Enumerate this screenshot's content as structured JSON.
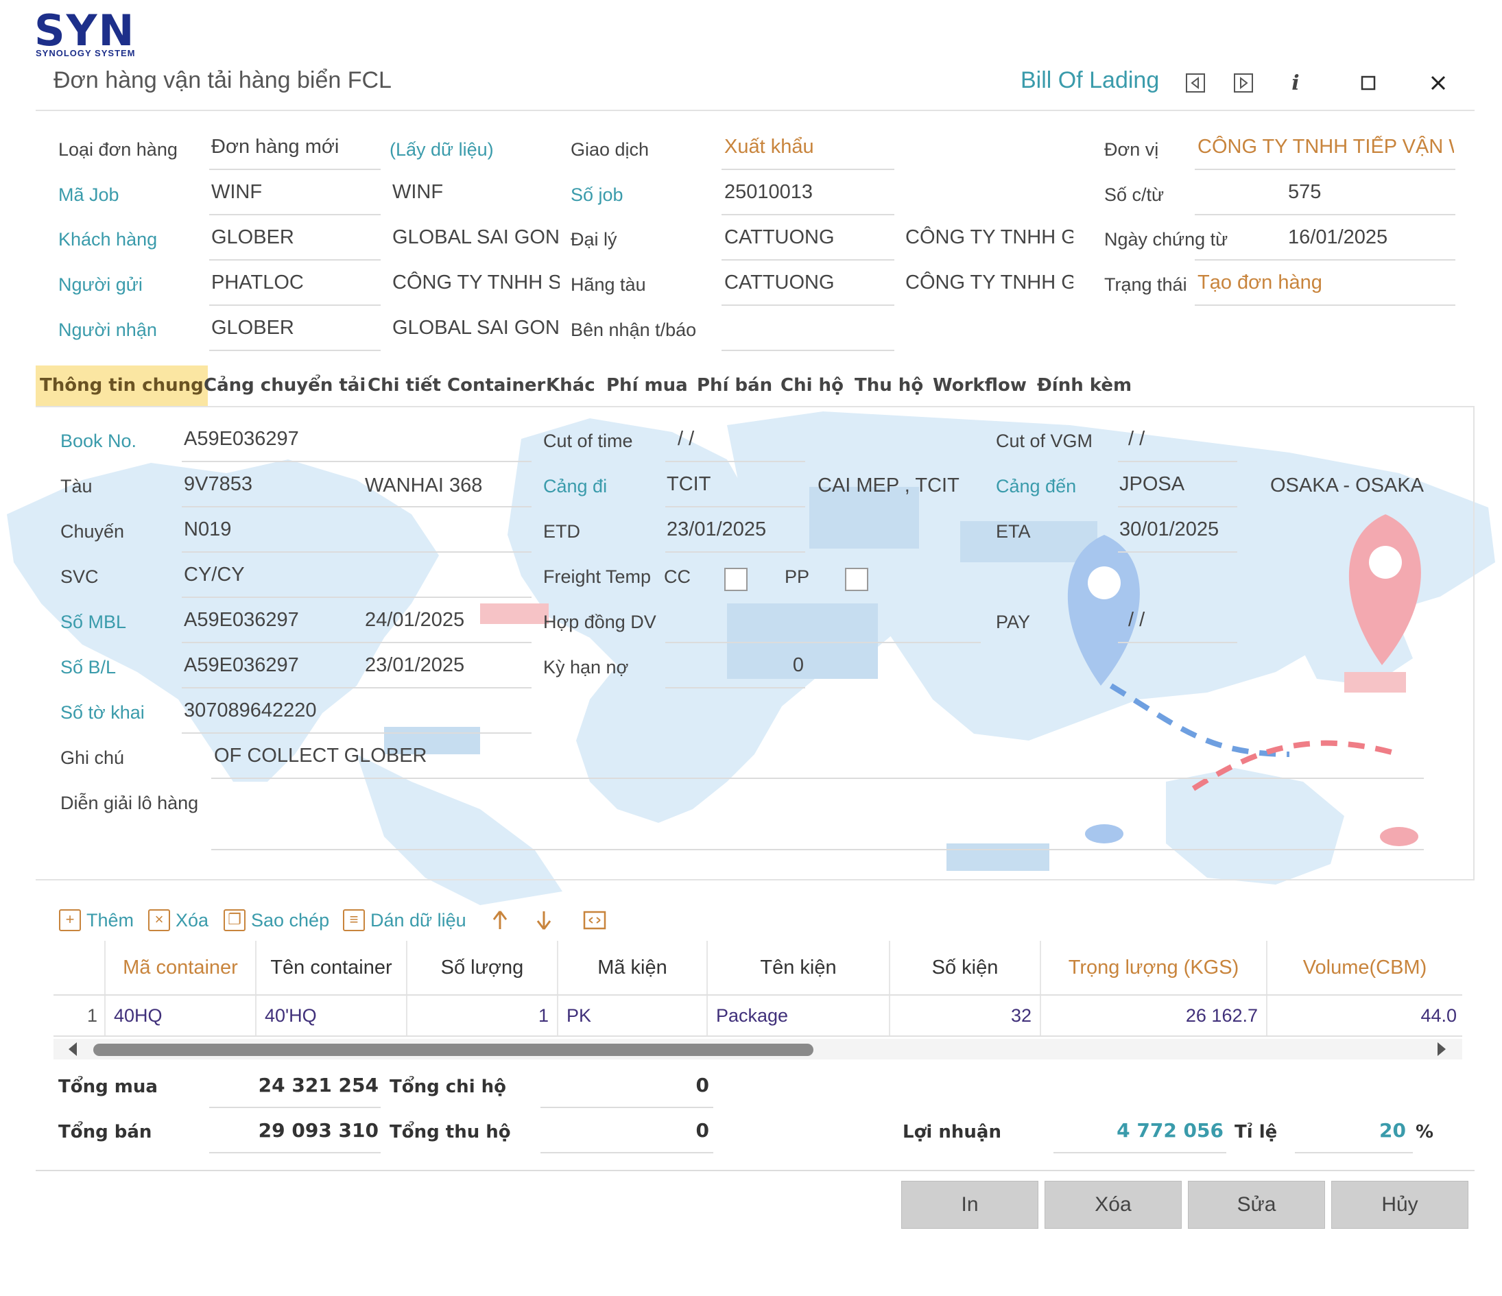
{
  "logo": {
    "main": "SYN",
    "sub": "SYNOLOGY SYSTEM"
  },
  "window": {
    "title": "Đơn hàng vận tải hàng biển FCL",
    "bol_link": "Bill Of Lading",
    "info_glyph": "i"
  },
  "header": {
    "loai_don_hang": {
      "label": "Loại đơn hàng",
      "value": "Đơn hàng mới",
      "link": "(Lấy dữ liệu)"
    },
    "giao_dich": {
      "label": "Giao dịch",
      "value": "Xuất khẩu"
    },
    "don_vi": {
      "label": "Đơn vị",
      "value": "CÔNG TY TNHH TIẾP VẬN WI"
    },
    "ma_job": {
      "label": "Mã Job",
      "value": "WINF",
      "name": "WINF"
    },
    "so_job": {
      "label": "Số job",
      "value": "25010013"
    },
    "so_ctu": {
      "label": "Số c/từ",
      "value": "575"
    },
    "khach_hang": {
      "label": "Khách hàng",
      "value": "GLOBER",
      "name": "GLOBAL SAI GON C"
    },
    "dai_ly": {
      "label": "Đại lý",
      "value": "CATTUONG",
      "name": "CÔNG TY TNHH GI."
    },
    "ngay_chung_tu": {
      "label": "Ngày chứng từ",
      "value": "16/01/2025"
    },
    "nguoi_gui": {
      "label": "Người gửi",
      "value": "PHATLOC",
      "name": "CÔNG TY TNHH SẢ"
    },
    "hang_tau": {
      "label": "Hãng tàu",
      "value": "CATTUONG",
      "name": "CÔNG TY TNHH GI."
    },
    "trang_thai": {
      "label": "Trạng thái",
      "value": "Tạo đơn hàng"
    },
    "nguoi_nhan": {
      "label": "Người nhận",
      "value": "GLOBER",
      "name": "GLOBAL SAI GON C"
    },
    "ben_nhan": {
      "label": "Bên nhận t/báo",
      "value": ""
    }
  },
  "tabs": [
    "Thông tin chung",
    "Cảng chuyển tải",
    "Chi tiết Container",
    "Khác",
    "Phí mua",
    "Phí bán",
    "Chi hộ",
    "Thu hộ",
    "Workflow",
    "Đính kèm"
  ],
  "general": {
    "book_no": {
      "label": "Book No.",
      "value": "A59E036297"
    },
    "cut_of_time": {
      "label": "Cut of time",
      "value": "/ /"
    },
    "cut_of_vgm": {
      "label": "Cut of VGM",
      "value": "/ /"
    },
    "tau": {
      "label": "Tàu",
      "code": "9V7853",
      "name": "WANHAI 368"
    },
    "cang_di": {
      "label": "Cảng đi",
      "code": "TCIT",
      "name": "CAI MEP , TCIT"
    },
    "cang_den": {
      "label": "Cảng đến",
      "code": "JPOSA",
      "name": "OSAKA - OSAKA"
    },
    "chuyen": {
      "label": "Chuyến",
      "value": "N019"
    },
    "etd": {
      "label": "ETD",
      "value": "23/01/2025"
    },
    "eta": {
      "label": "ETA",
      "value": "30/01/2025"
    },
    "svc": {
      "label": "SVC",
      "value": "CY/CY"
    },
    "freight_temp": {
      "label": "Freight Temp",
      "cc": "CC",
      "pp": "PP"
    },
    "so_mbl": {
      "label": "Số MBL",
      "value": "A59E036297",
      "date": "24/01/2025"
    },
    "hop_dong": {
      "label": "Hợp đồng DV",
      "value": ""
    },
    "pay": {
      "label": "PAY",
      "value": "/ /"
    },
    "so_bl": {
      "label": "Số B/L",
      "value": "A59E036297",
      "date": "23/01/2025"
    },
    "ky_han_no": {
      "label": "Kỳ hạn nợ",
      "value": "0"
    },
    "so_to_khai": {
      "label": "Số tờ khai",
      "value": "307089642220"
    },
    "ghi_chu": {
      "label": "Ghi chú",
      "value": "OF COLLECT GLOBER"
    },
    "dien_giai": {
      "label": "Diễn giải lô hàng",
      "value": ""
    }
  },
  "toolbar": {
    "add": "Thêm",
    "delete": "Xóa",
    "copy": "Sao chép",
    "paste": "Dán dữ liệu"
  },
  "grid": {
    "columns": [
      "Mã container",
      "Tên container",
      "Số lượng",
      "Mã kiện",
      "Tên kiện",
      "Số kiện",
      "Trọng lượng (KGS)",
      "Volume(CBM)"
    ],
    "rows": [
      {
        "idx": "1",
        "ma_container": "40HQ",
        "ten_container": "40'HQ",
        "so_luong": "1",
        "ma_kien": "PK",
        "ten_kien": "Package",
        "so_kien": "32",
        "trong_luong": "26 162.7",
        "volume": "44.0"
      }
    ]
  },
  "totals": {
    "tong_mua": {
      "label": "Tổng mua",
      "value": "24 321 254"
    },
    "tong_chi_ho": {
      "label": "Tổng chi hộ",
      "value": "0"
    },
    "tong_ban": {
      "label": "Tổng bán",
      "value": "29 093 310"
    },
    "tong_thu_ho": {
      "label": "Tổng thu hộ",
      "value": "0"
    },
    "loi_nhuan": {
      "label": "Lợi nhuận",
      "value": "4 772 056"
    },
    "ti_le": {
      "label": "Tỉ lệ",
      "value": "20",
      "unit": "%"
    }
  },
  "buttons": {
    "print": "In",
    "delete": "Xóa",
    "edit": "Sửa",
    "cancel": "Hủy"
  },
  "colors": {
    "teal": "#3a9bab",
    "orange": "#c8843c",
    "tab_active": "#fbe6a2",
    "map": "#dcecf8"
  }
}
